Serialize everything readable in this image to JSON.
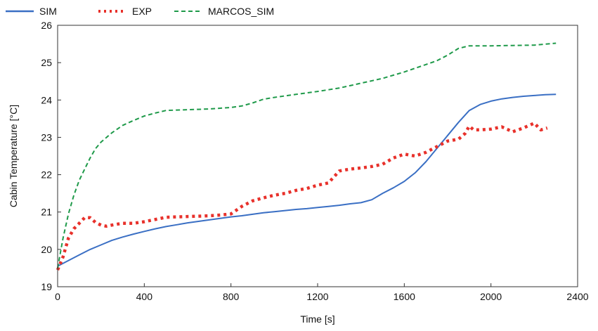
{
  "chart_data": {
    "type": "line",
    "title": "",
    "xlabel": "Time [s]",
    "ylabel": "Cabin Temperature [°C]",
    "xlim": [
      0,
      2400
    ],
    "ylim": [
      19,
      26
    ],
    "xticks": [
      0,
      400,
      800,
      1200,
      1600,
      2000,
      2400
    ],
    "xtick_labels": [
      "0",
      "400",
      "800",
      "1200",
      "1600",
      "2000",
      "2400"
    ],
    "yticks": [
      19,
      20,
      21,
      22,
      23,
      24,
      25,
      26
    ],
    "ytick_labels": [
      "19",
      "20",
      "21",
      "22",
      "23",
      "24",
      "25",
      "26"
    ],
    "grid": false,
    "legend_position": "top-left",
    "series": [
      {
        "name": "SIM",
        "color": "#3a6fc4",
        "style": "solid",
        "x": [
          0,
          50,
          100,
          150,
          200,
          250,
          300,
          350,
          400,
          450,
          500,
          550,
          600,
          650,
          700,
          750,
          800,
          850,
          900,
          950,
          1000,
          1050,
          1100,
          1150,
          1200,
          1250,
          1300,
          1350,
          1400,
          1450,
          1500,
          1550,
          1600,
          1650,
          1700,
          1750,
          1800,
          1850,
          1900,
          1950,
          2000,
          2050,
          2100,
          2150,
          2200,
          2250,
          2300
        ],
        "y": [
          19.55,
          19.7,
          19.85,
          20.0,
          20.12,
          20.24,
          20.33,
          20.41,
          20.48,
          20.55,
          20.61,
          20.66,
          20.71,
          20.75,
          20.79,
          20.83,
          20.87,
          20.9,
          20.94,
          20.98,
          21.01,
          21.04,
          21.07,
          21.09,
          21.12,
          21.15,
          21.18,
          21.22,
          21.25,
          21.33,
          21.5,
          21.65,
          21.82,
          22.05,
          22.35,
          22.7,
          23.05,
          23.4,
          23.72,
          23.88,
          23.97,
          24.03,
          24.07,
          24.1,
          24.12,
          24.14,
          24.15
        ]
      },
      {
        "name": "EXP",
        "color": "#e8312b",
        "style": "dotted",
        "x": [
          0,
          25,
          50,
          75,
          100,
          125,
          150,
          175,
          200,
          225,
          250,
          300,
          350,
          400,
          450,
          500,
          550,
          600,
          650,
          700,
          750,
          800,
          850,
          900,
          950,
          1000,
          1050,
          1100,
          1150,
          1200,
          1250,
          1300,
          1350,
          1400,
          1450,
          1500,
          1550,
          1600,
          1650,
          1700,
          1750,
          1800,
          1850,
          1880,
          1900,
          1920,
          1950,
          2000,
          2050,
          2100,
          2150,
          2200,
          2230,
          2260
        ],
        "y": [
          19.45,
          19.8,
          20.3,
          20.55,
          20.7,
          20.85,
          20.85,
          20.72,
          20.65,
          20.62,
          20.65,
          20.7,
          20.7,
          20.74,
          20.8,
          20.86,
          20.87,
          20.88,
          20.89,
          20.9,
          20.92,
          20.95,
          21.15,
          21.3,
          21.38,
          21.45,
          21.5,
          21.58,
          21.63,
          21.72,
          21.78,
          22.1,
          22.15,
          22.18,
          22.22,
          22.28,
          22.45,
          22.55,
          22.5,
          22.6,
          22.75,
          22.9,
          22.95,
          23.1,
          23.3,
          23.2,
          23.2,
          23.22,
          23.28,
          23.15,
          23.25,
          23.38,
          23.2,
          23.25
        ]
      },
      {
        "name": "MARCOS_SIM",
        "color": "#1f9a4a",
        "style": "dashed",
        "x": [
          0,
          25,
          50,
          75,
          100,
          125,
          150,
          175,
          200,
          250,
          300,
          350,
          400,
          450,
          500,
          550,
          600,
          650,
          700,
          750,
          800,
          850,
          900,
          950,
          1000,
          1100,
          1200,
          1300,
          1400,
          1500,
          1600,
          1700,
          1750,
          1800,
          1850,
          1900,
          2000,
          2100,
          2200,
          2300
        ],
        "y": [
          19.5,
          20.3,
          20.95,
          21.45,
          21.85,
          22.15,
          22.45,
          22.7,
          22.87,
          23.12,
          23.32,
          23.45,
          23.57,
          23.65,
          23.72,
          23.73,
          23.74,
          23.75,
          23.76,
          23.78,
          23.8,
          23.84,
          23.92,
          24.02,
          24.07,
          24.15,
          24.23,
          24.32,
          24.45,
          24.58,
          24.75,
          24.95,
          25.05,
          25.2,
          25.38,
          25.45,
          25.45,
          25.46,
          25.47,
          25.52
        ]
      }
    ]
  }
}
